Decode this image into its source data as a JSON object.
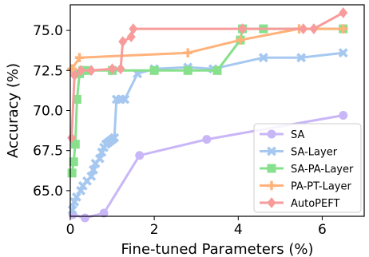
{
  "chart_data": {
    "type": "line",
    "xlabel": "Fine-tuned Parameters (%)",
    "ylabel": "Accuracy (%)",
    "xlim": [
      0,
      7
    ],
    "ylim": [
      63.4,
      76.6
    ],
    "xticks": [
      0,
      2,
      4,
      6
    ],
    "yticks": [
      65.0,
      67.5,
      70.0,
      72.5,
      75.0
    ],
    "xtick_labels": [
      "0",
      "2",
      "4",
      "6"
    ],
    "ytick_labels": [
      "65.0",
      "67.5",
      "70.0",
      "72.5",
      "75.0"
    ],
    "grid": false,
    "legend_position": "lower-right",
    "series": [
      {
        "name": "SA",
        "color": "#c9b6f7",
        "marker": "circle",
        "x": [
          0.06,
          0.35,
          0.8,
          1.65,
          3.25,
          6.5
        ],
        "y": [
          63.5,
          63.3,
          63.6,
          67.2,
          68.2,
          69.7
        ]
      },
      {
        "name": "SA-Layer",
        "color": "#a6c8f0",
        "marker": "x",
        "x": [
          0.05,
          0.1,
          0.15,
          0.25,
          0.3,
          0.4,
          0.5,
          0.55,
          0.6,
          0.7,
          0.75,
          0.8,
          0.85,
          0.9,
          0.95,
          1.0,
          1.05,
          1.1,
          1.2,
          1.3,
          1.6,
          2.0,
          2.8,
          3.4,
          4.6,
          5.5,
          6.5
        ],
        "y": [
          63.8,
          64.3,
          64.6,
          65.0,
          65.3,
          65.6,
          65.9,
          66.3,
          66.7,
          67.0,
          67.4,
          67.7,
          67.9,
          68.0,
          68.1,
          68.2,
          68.3,
          70.7,
          70.7,
          70.7,
          72.3,
          72.6,
          72.7,
          72.6,
          73.3,
          73.3,
          73.6
        ]
      },
      {
        "name": "SA-PA-Layer",
        "color": "#86e08c",
        "marker": "square",
        "x": [
          0.04,
          0.08,
          0.12,
          0.16,
          0.22,
          0.3,
          0.4,
          1.0,
          2.0,
          2.8,
          3.5,
          4.05,
          4.1,
          4.6,
          6.5
        ],
        "y": [
          66.1,
          66.8,
          67.9,
          70.7,
          72.3,
          72.5,
          72.5,
          72.5,
          72.5,
          72.5,
          72.5,
          74.4,
          75.1,
          75.1,
          75.1
        ]
      },
      {
        "name": "PA-PT-Layer",
        "color": "#ffb27a",
        "marker": "plus",
        "x": [
          0.04,
          0.22,
          2.8,
          4.05,
          5.45,
          6.5
        ],
        "y": [
          72.6,
          73.3,
          73.6,
          74.4,
          75.1,
          75.1
        ]
      },
      {
        "name": "AutoPEFT",
        "color": "#f79b9b",
        "marker": "diamond",
        "x": [
          0.03,
          0.1,
          0.25,
          0.5,
          1.0,
          1.2,
          1.25,
          1.45,
          1.5,
          4.1,
          5.55,
          5.8,
          6.5
        ],
        "y": [
          68.3,
          72.2,
          72.5,
          72.5,
          72.6,
          72.6,
          74.3,
          74.6,
          75.1,
          75.1,
          75.1,
          75.1,
          76.1
        ]
      }
    ]
  }
}
